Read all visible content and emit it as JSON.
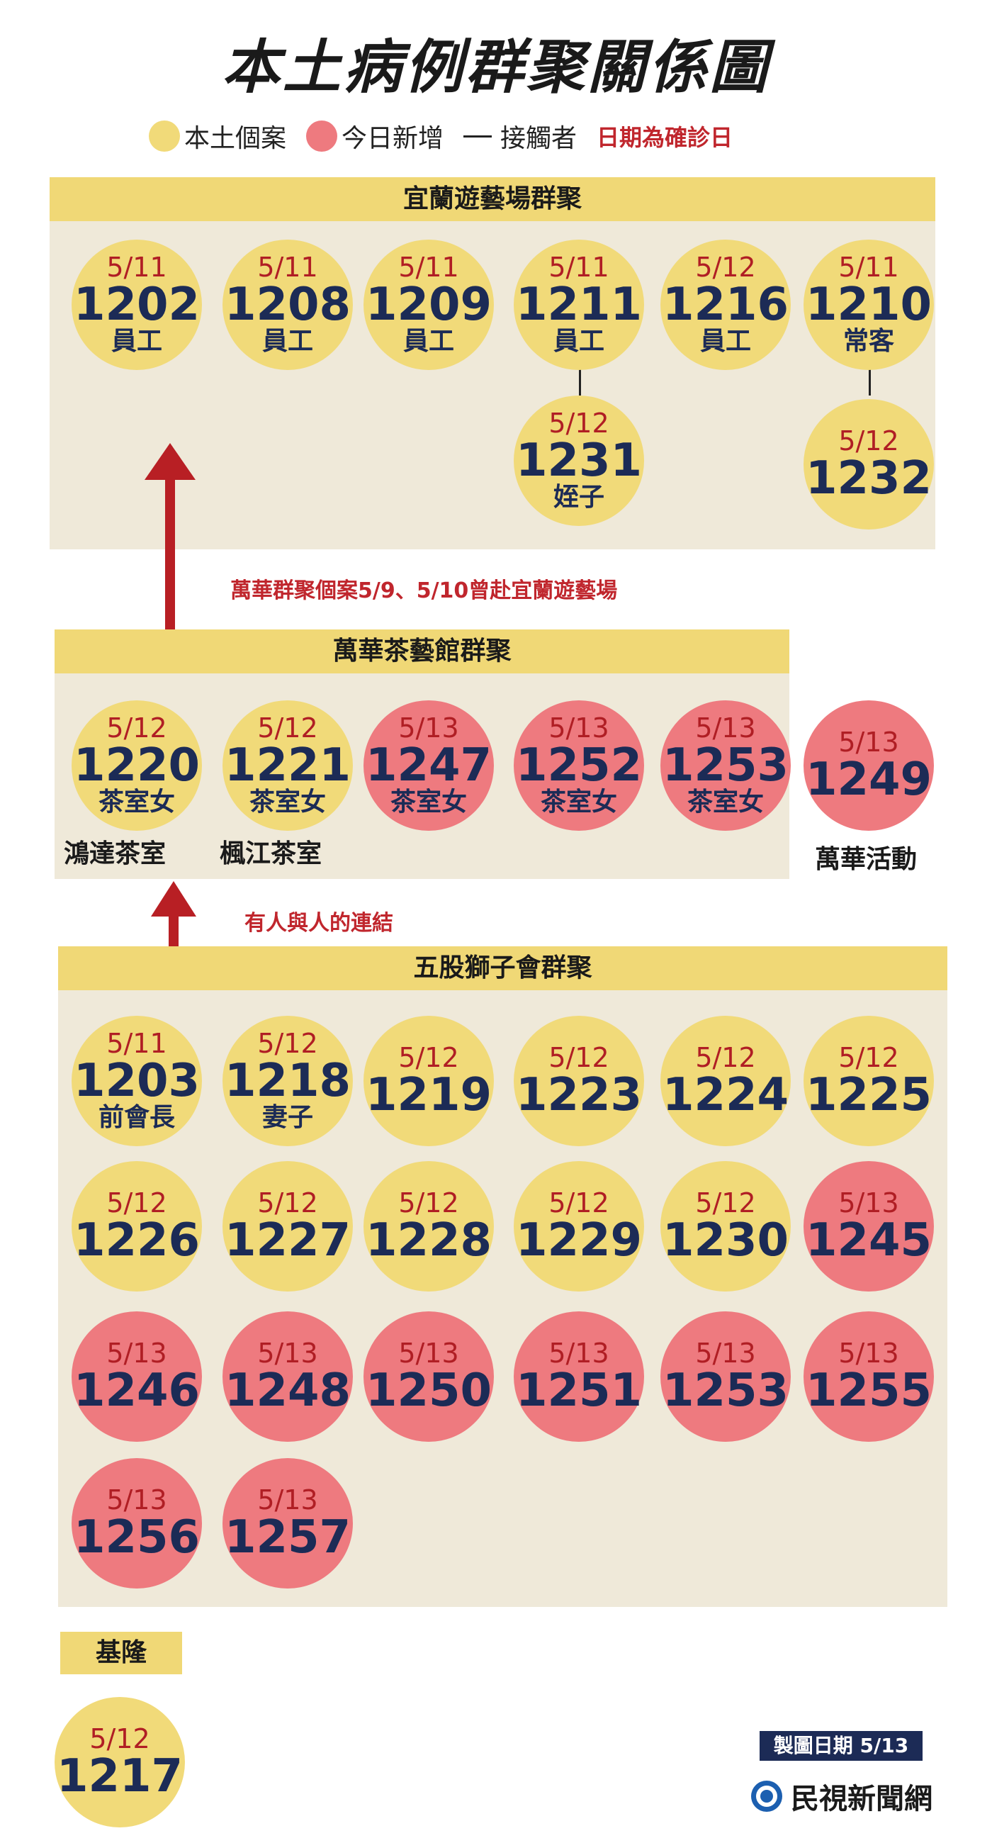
{
  "title": "本土病例群聚關係圖",
  "legend": {
    "local_label": "本土個案",
    "new_label": "今日新增",
    "contact_label": "接觸者",
    "date_note": "日期為確診日",
    "colors": {
      "local": "#f1da79",
      "new": "#ee7a7f",
      "date_text": "#b01e24",
      "id_text": "#1c2b56"
    }
  },
  "clusters": {
    "yilan": {
      "title": "宜蘭遊藝場群聚",
      "cases": [
        {
          "date": "5/11",
          "id": "1202",
          "role": "員工",
          "status": "local"
        },
        {
          "date": "5/11",
          "id": "1208",
          "role": "員工",
          "status": "local"
        },
        {
          "date": "5/11",
          "id": "1209",
          "role": "員工",
          "status": "local"
        },
        {
          "date": "5/11",
          "id": "1211",
          "role": "員工",
          "status": "local"
        },
        {
          "date": "5/12",
          "id": "1216",
          "role": "員工",
          "status": "local"
        },
        {
          "date": "5/11",
          "id": "1210",
          "role": "常客",
          "status": "local"
        },
        {
          "date": "5/12",
          "id": "1231",
          "role": "姪子",
          "status": "local"
        },
        {
          "date": "5/12",
          "id": "1232",
          "role": "",
          "status": "local"
        }
      ]
    },
    "wanhua": {
      "title": "萬華茶藝館群聚",
      "cases": [
        {
          "date": "5/12",
          "id": "1220",
          "role": "茶室女",
          "status": "local"
        },
        {
          "date": "5/12",
          "id": "1221",
          "role": "茶室女",
          "status": "local"
        },
        {
          "date": "5/13",
          "id": "1247",
          "role": "茶室女",
          "status": "new"
        },
        {
          "date": "5/13",
          "id": "1252",
          "role": "茶室女",
          "status": "new"
        },
        {
          "date": "5/13",
          "id": "1253",
          "role": "茶室女",
          "status": "new"
        }
      ],
      "venue_1": "鴻達茶室",
      "venue_2": "楓江茶室"
    },
    "wanhua_event": {
      "case": {
        "date": "5/13",
        "id": "1249",
        "role": "",
        "status": "new"
      },
      "label": "萬華活動"
    },
    "wugu": {
      "title": "五股獅子會群聚",
      "cases": [
        {
          "date": "5/11",
          "id": "1203",
          "role": "前會長",
          "status": "local"
        },
        {
          "date": "5/12",
          "id": "1218",
          "role": "妻子",
          "status": "local"
        },
        {
          "date": "5/12",
          "id": "1219",
          "role": "",
          "status": "local"
        },
        {
          "date": "5/12",
          "id": "1223",
          "role": "",
          "status": "local"
        },
        {
          "date": "5/12",
          "id": "1224",
          "role": "",
          "status": "local"
        },
        {
          "date": "5/12",
          "id": "1225",
          "role": "",
          "status": "local"
        },
        {
          "date": "5/12",
          "id": "1226",
          "role": "",
          "status": "local"
        },
        {
          "date": "5/12",
          "id": "1227",
          "role": "",
          "status": "local"
        },
        {
          "date": "5/12",
          "id": "1228",
          "role": "",
          "status": "local"
        },
        {
          "date": "5/12",
          "id": "1229",
          "role": "",
          "status": "local"
        },
        {
          "date": "5/12",
          "id": "1230",
          "role": "",
          "status": "local"
        },
        {
          "date": "5/13",
          "id": "1245",
          "role": "",
          "status": "new"
        },
        {
          "date": "5/13",
          "id": "1246",
          "role": "",
          "status": "new"
        },
        {
          "date": "5/13",
          "id": "1248",
          "role": "",
          "status": "new"
        },
        {
          "date": "5/13",
          "id": "1250",
          "role": "",
          "status": "new"
        },
        {
          "date": "5/13",
          "id": "1251",
          "role": "",
          "status": "new"
        },
        {
          "date": "5/13",
          "id": "1253",
          "role": "",
          "status": "new"
        },
        {
          "date": "5/13",
          "id": "1255",
          "role": "",
          "status": "new"
        },
        {
          "date": "5/13",
          "id": "1256",
          "role": "",
          "status": "new"
        },
        {
          "date": "5/13",
          "id": "1257",
          "role": "",
          "status": "new"
        }
      ]
    },
    "keelung": {
      "title": "基隆",
      "case": {
        "date": "5/12",
        "id": "1217",
        "role": "",
        "status": "local"
      }
    }
  },
  "links": {
    "wanhua_to_yilan": "萬華群聚個案5/9、5/10曾赴宜蘭遊藝場",
    "wugu_to_wanhua": "有人與人的連結",
    "arrow_color": "#b81f24"
  },
  "footer": {
    "date_label": "製圖日期 5/13",
    "brand": "民視新聞網"
  }
}
